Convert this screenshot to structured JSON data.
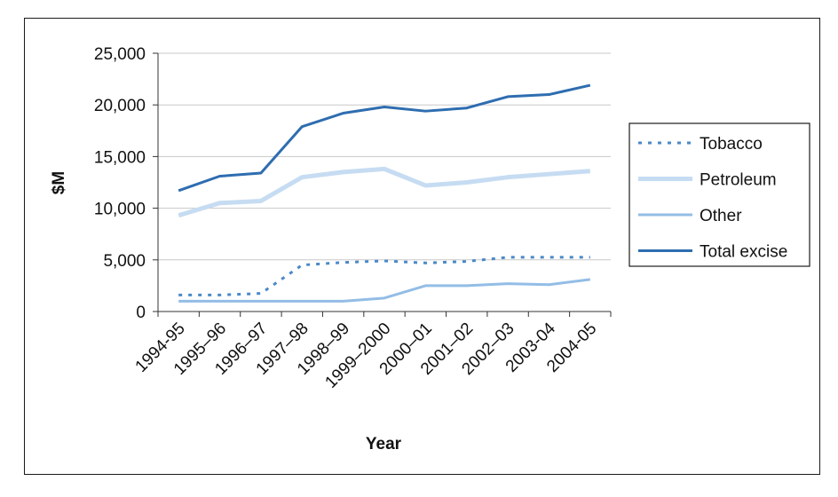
{
  "chart_data": {
    "type": "line",
    "xlabel": "Year",
    "ylabel": "$M",
    "ylim": [
      0,
      25000
    ],
    "yticks": [
      "0",
      "5,000",
      "10,000",
      "15,000",
      "20,000",
      "25,000"
    ],
    "categories": [
      "1994-95",
      "1995–96",
      "1996–97",
      "1997–98",
      "1998–99",
      "1999–2000",
      "2000–01",
      "2001–02",
      "2002–03",
      "2003-04",
      "2004-05"
    ],
    "series": [
      {
        "name": "Tobacco",
        "color": "#4a89c8",
        "style": "dotted",
        "values": [
          1600,
          1600,
          1750,
          4500,
          4750,
          4900,
          4700,
          4850,
          5250,
          5250,
          5250
        ]
      },
      {
        "name": "Petroleum",
        "color": "#c6dcf2",
        "style": "solid-thick",
        "values": [
          9300,
          10500,
          10700,
          13000,
          13500,
          13800,
          12200,
          12500,
          13000,
          13300,
          13600
        ]
      },
      {
        "name": "Other",
        "color": "#93bde6",
        "style": "solid",
        "values": [
          1000,
          1000,
          1000,
          1000,
          1000,
          1300,
          2500,
          2500,
          2700,
          2600,
          3100
        ]
      },
      {
        "name": "Total excise",
        "color": "#2e6db0",
        "style": "solid",
        "values": [
          11700,
          13100,
          13400,
          17900,
          19200,
          19800,
          19400,
          19700,
          20800,
          21000,
          21900
        ]
      }
    ],
    "legend_position": "right",
    "grid": "horizontal"
  }
}
